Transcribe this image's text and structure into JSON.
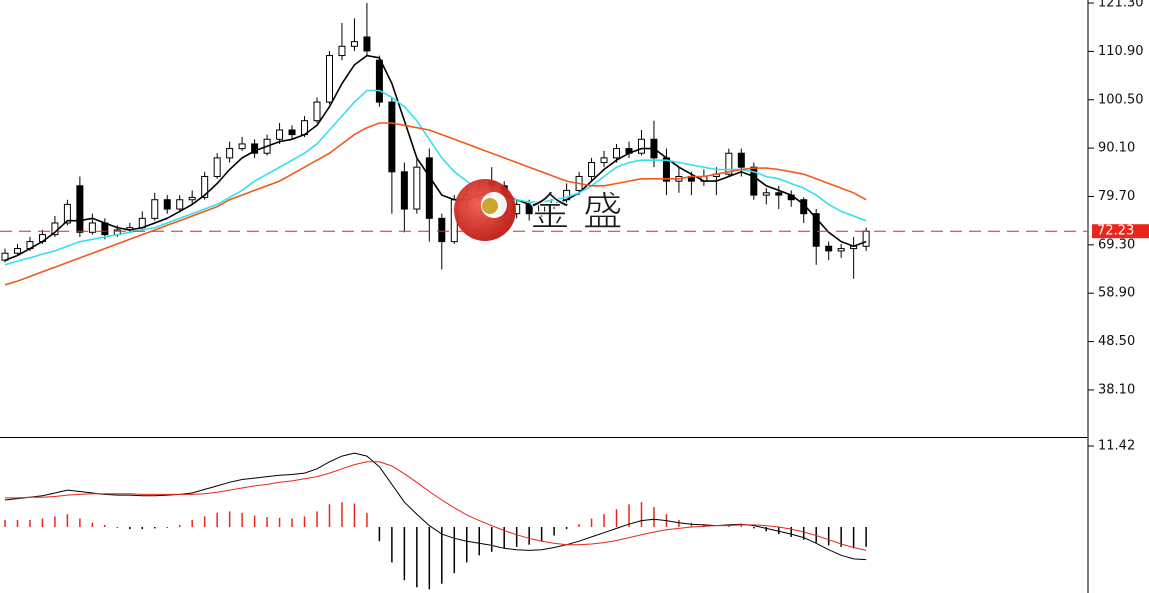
{
  "watermark": "金 盛",
  "chart_data": [
    {
      "type": "candlestick",
      "open": [
        66,
        67.5,
        68.5,
        70,
        71.5,
        74,
        82,
        72,
        74,
        71.5,
        72.5,
        73,
        75,
        79,
        77,
        79,
        79.5,
        84,
        88,
        90,
        91,
        89,
        92,
        94,
        93,
        96,
        100,
        110,
        112,
        114,
        109,
        100,
        85,
        77,
        88,
        75,
        70,
        79,
        80,
        83,
        82,
        76,
        78,
        76,
        78,
        79,
        81,
        84,
        87,
        88,
        90,
        89,
        92,
        88,
        83,
        84,
        83,
        84,
        84.5,
        89,
        86,
        80,
        80.5,
        80,
        79,
        76,
        69,
        68,
        68.5,
        69
      ],
      "high": [
        68.5,
        69.5,
        71,
        72.5,
        75.5,
        79,
        84,
        76,
        75,
        73.5,
        74,
        76.5,
        80.5,
        80,
        80,
        81,
        85,
        89,
        91.5,
        92.5,
        92,
        93,
        95.5,
        95,
        97,
        101,
        111,
        117,
        118,
        121.3,
        110,
        101,
        87,
        88,
        90,
        76,
        80,
        82,
        83,
        86,
        83,
        79,
        79,
        79,
        80,
        82.5,
        85,
        88,
        89.5,
        91,
        91.5,
        94,
        96,
        90,
        86,
        85,
        85.5,
        86,
        90,
        90,
        87,
        81.5,
        82,
        81,
        79.5,
        77,
        70,
        69.5,
        71,
        73
      ],
      "low": [
        65.5,
        67,
        68,
        69.5,
        71,
        73.5,
        71,
        71.5,
        70.5,
        71,
        72,
        72.5,
        74.5,
        76,
        76.5,
        78,
        79,
        83.5,
        87,
        89.5,
        88,
        88.5,
        91,
        92,
        92.5,
        95.5,
        99.5,
        109,
        111,
        110,
        99,
        76,
        72,
        76,
        70,
        64,
        69.5,
        77,
        78.5,
        80,
        74,
        75,
        74.5,
        75,
        77,
        78,
        80,
        83,
        86,
        87,
        88,
        88.5,
        86,
        80,
        80.5,
        80,
        82,
        80,
        84,
        84,
        79,
        78,
        77,
        77.5,
        74,
        65,
        66,
        66.5,
        62,
        68
      ],
      "close": [
        67.5,
        68.5,
        70,
        71.5,
        74,
        78,
        72,
        74,
        71.5,
        72.5,
        73,
        75,
        79,
        77,
        79,
        79.5,
        84,
        88,
        90,
        91,
        89,
        92,
        94,
        93,
        96,
        100,
        110,
        112,
        113,
        111,
        100,
        85,
        77,
        86,
        75,
        70,
        79,
        80,
        81,
        82,
        76,
        78,
        76,
        78,
        79,
        81,
        84,
        87,
        88,
        90,
        89,
        92,
        88,
        83,
        84,
        83,
        84,
        84.5,
        89,
        86,
        80,
        80.5,
        80,
        79,
        76,
        69,
        68,
        68.5,
        69,
        72.23
      ],
      "lines": [
        {
          "color": "#000000",
          "values": [
            66,
            67,
            68.5,
            70,
            72,
            74.5,
            74.5,
            75,
            74,
            73,
            72.5,
            73,
            74,
            75,
            76.5,
            78,
            80,
            82.5,
            85.5,
            88,
            89.5,
            90.5,
            91.5,
            92,
            93,
            95,
            99,
            104,
            108,
            110,
            109.5,
            104,
            96,
            88,
            84,
            80,
            79,
            79,
            80,
            80,
            80,
            79,
            78,
            78,
            78,
            79,
            80.5,
            83,
            85.5,
            87.5,
            89,
            90,
            90,
            88,
            86,
            84.5,
            83,
            83,
            84,
            85,
            84,
            82,
            81,
            80,
            78,
            75,
            72,
            70,
            69,
            70
          ]
        },
        {
          "color": "#33e0f0",
          "values": [
            65,
            65.8,
            66.5,
            67.3,
            68,
            69,
            70,
            70.5,
            71,
            71.5,
            72,
            72.5,
            73,
            74,
            75,
            76,
            77,
            78,
            79.5,
            81,
            83,
            84.5,
            86,
            87.5,
            89,
            91,
            94,
            97,
            100,
            102.5,
            102.5,
            101,
            99,
            96,
            92,
            88,
            85,
            83,
            81,
            80,
            79.5,
            79,
            78.5,
            78.5,
            79,
            79.5,
            80.5,
            82,
            84,
            86,
            87,
            87.5,
            87.5,
            87.5,
            87,
            86.5,
            86,
            85.5,
            85.5,
            85.5,
            85,
            84,
            83.5,
            82.5,
            81.5,
            80,
            78,
            76.5,
            75.5,
            74.5
          ]
        },
        {
          "color": "#f05a1e",
          "values": [
            60.7,
            61.5,
            62.5,
            63.5,
            64.5,
            65.5,
            66.5,
            67.5,
            68.5,
            69.5,
            70.5,
            71.5,
            72.5,
            73.5,
            74.5,
            75.5,
            76.5,
            77.5,
            79,
            80,
            81,
            82,
            83,
            84.5,
            86,
            87.5,
            89,
            91,
            93,
            94.5,
            95.5,
            95.5,
            95,
            94.5,
            94,
            93,
            92,
            91,
            90,
            89,
            88,
            87,
            86,
            85,
            84,
            83,
            82.5,
            82,
            82,
            82.5,
            83,
            83.5,
            83.5,
            83.5,
            83.5,
            84,
            84,
            84.5,
            85,
            85.5,
            85.8,
            85.8,
            85.5,
            85,
            84.5,
            83.5,
            82.5,
            81.5,
            80.5,
            79
          ]
        }
      ],
      "up_color": "#ffffff",
      "down_color": "#000000",
      "price_line_color": "#e8261c",
      "ylim": [
        27.98,
        121.95
      ],
      "yticks": [
        {
          "value": 121.3,
          "label": "121.30"
        },
        {
          "value": 110.9,
          "label": "110.90"
        },
        {
          "value": 100.5,
          "label": "100.50"
        },
        {
          "value": 90.1,
          "label": "90.10"
        },
        {
          "value": 79.7,
          "label": "79.70"
        },
        {
          "value": 69.3,
          "label": "69.30"
        },
        {
          "value": 58.9,
          "label": "58.90"
        },
        {
          "value": 48.5,
          "label": "48.50"
        },
        {
          "value": 38.1,
          "label": "38.10"
        }
      ]
    },
    {
      "type": "macd",
      "dif": {
        "color": "#000000",
        "values": [
          3.8,
          4.0,
          4.2,
          4.4,
          4.8,
          5.2,
          5.0,
          4.8,
          4.6,
          4.5,
          4.5,
          4.4,
          4.4,
          4.5,
          4.6,
          4.8,
          5.3,
          5.8,
          6.3,
          6.7,
          6.9,
          7.1,
          7.3,
          7.4,
          7.6,
          8.2,
          9.2,
          10.0,
          10.4,
          10.0,
          8.5,
          6.0,
          3.5,
          1.8,
          0.2,
          -1.0,
          -1.6,
          -2.0,
          -2.3,
          -2.6,
          -3.0,
          -3.2,
          -3.3,
          -3.2,
          -2.9,
          -2.5,
          -2.0,
          -1.4,
          -0.8,
          -0.2,
          0.4,
          0.9,
          1.1,
          0.9,
          0.6,
          0.4,
          0.3,
          0.2,
          0.3,
          0.4,
          0.2,
          -0.2,
          -0.6,
          -1.0,
          -1.5,
          -2.3,
          -3.2,
          -4.0,
          -4.5,
          -4.6
        ]
      },
      "dea": {
        "color": "#e8261c",
        "values": [
          4.1,
          4.1,
          4.2,
          4.2,
          4.3,
          4.5,
          4.6,
          4.7,
          4.7,
          4.7,
          4.7,
          4.6,
          4.6,
          4.6,
          4.6,
          4.6,
          4.7,
          4.9,
          5.2,
          5.5,
          5.8,
          6.0,
          6.3,
          6.5,
          6.8,
          7.1,
          7.6,
          8.2,
          8.8,
          9.2,
          9.2,
          8.6,
          7.5,
          6.3,
          5.0,
          3.8,
          2.7,
          1.7,
          0.9,
          0.2,
          -0.5,
          -1.1,
          -1.6,
          -2.0,
          -2.3,
          -2.5,
          -2.5,
          -2.4,
          -2.2,
          -1.9,
          -1.5,
          -1.1,
          -0.7,
          -0.4,
          -0.2,
          0.0,
          0.1,
          0.2,
          0.2,
          0.3,
          0.3,
          0.2,
          0.0,
          -0.3,
          -0.7,
          -1.2,
          -1.8,
          -2.4,
          -2.9,
          -3.3
        ]
      },
      "hist": {
        "up_color": "#e8261c",
        "down_color": "#000000",
        "values": [
          1.0,
          1.0,
          1.0,
          1.2,
          1.5,
          1.8,
          1.2,
          0.6,
          0.3,
          -0.1,
          -0.3,
          -0.3,
          -0.2,
          -0.1,
          0.3,
          1.0,
          1.5,
          2.0,
          2.2,
          2.0,
          1.6,
          1.4,
          1.3,
          1.2,
          1.5,
          2.2,
          3.2,
          3.5,
          3.3,
          2.0,
          -2.0,
          -5.0,
          -7.5,
          -8.5,
          -8.8,
          -8.0,
          -6.5,
          -5.0,
          -4.0,
          -3.5,
          -3.0,
          -2.8,
          -2.5,
          -2.0,
          -1.2,
          -0.3,
          0.4,
          1.2,
          1.8,
          2.5,
          3.2,
          3.5,
          2.8,
          1.8,
          1.0,
          0.6,
          0.4,
          0.0,
          0.2,
          0.3,
          -0.2,
          -0.6,
          -1.0,
          -1.4,
          -1.8,
          -2.2,
          -2.6,
          -2.8,
          -3.0,
          -2.8
        ]
      },
      "ylim": [
        -9.31,
        12.55
      ],
      "yticks": [
        11.42
      ]
    }
  ]
}
